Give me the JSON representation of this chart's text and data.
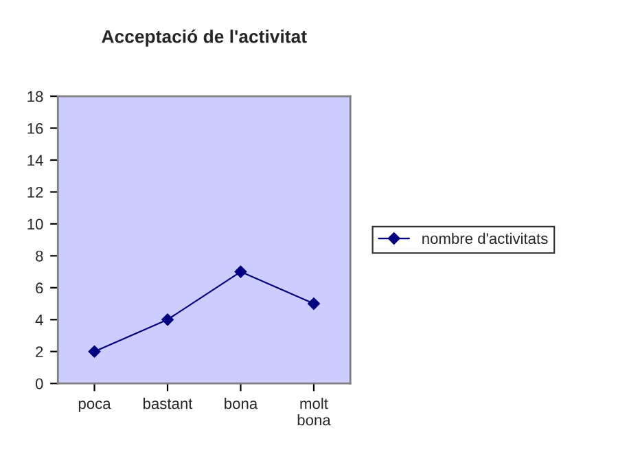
{
  "chart_data": {
    "type": "line",
    "title": "Acceptació de l'activitat",
    "categories": [
      "poca",
      "bastant",
      "bona",
      "molt\nbona"
    ],
    "series": [
      {
        "name": "nombre d'activitats",
        "color": "#000080",
        "values": [
          2,
          4,
          7,
          5
        ]
      }
    ],
    "ylim": [
      0,
      18
    ],
    "yticks": [
      0,
      2,
      4,
      6,
      8,
      10,
      12,
      14,
      16,
      18
    ],
    "grid": false,
    "legend": "right",
    "marker": "diamond",
    "line_style": "solid"
  }
}
